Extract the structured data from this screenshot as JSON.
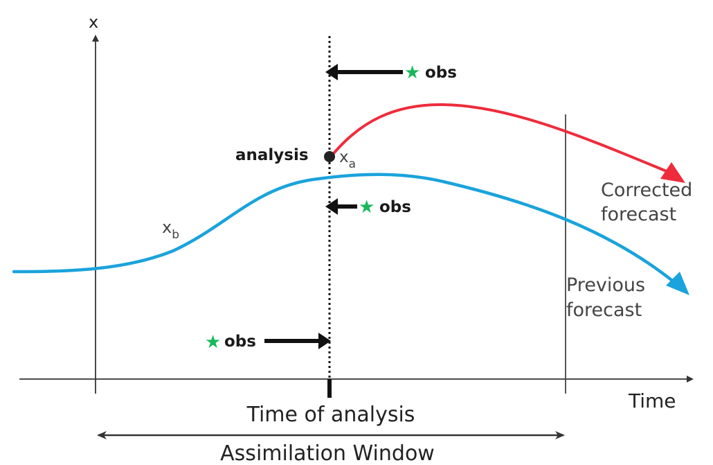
{
  "axes": {
    "y_label": "x",
    "x_label": "Time"
  },
  "labels": {
    "analysis": "analysis",
    "xa_base": "x",
    "xa_sub": "a",
    "xb_base": "x",
    "xb_sub": "b",
    "corrected_line1": "Corrected",
    "corrected_line2": "forecast",
    "previous_line1": "Previous",
    "previous_line2": "forecast",
    "time_of_analysis": "Time of analysis",
    "assimilation_window": "Assimilation Window"
  },
  "observations": [
    {
      "label": "obs"
    },
    {
      "label": "obs"
    },
    {
      "label": "obs"
    }
  ],
  "colors": {
    "background_curve": "#1aa3dc",
    "corrected_curve": "#ee2c3c",
    "obs_star": "#18b85a",
    "axis": "#333333"
  }
}
